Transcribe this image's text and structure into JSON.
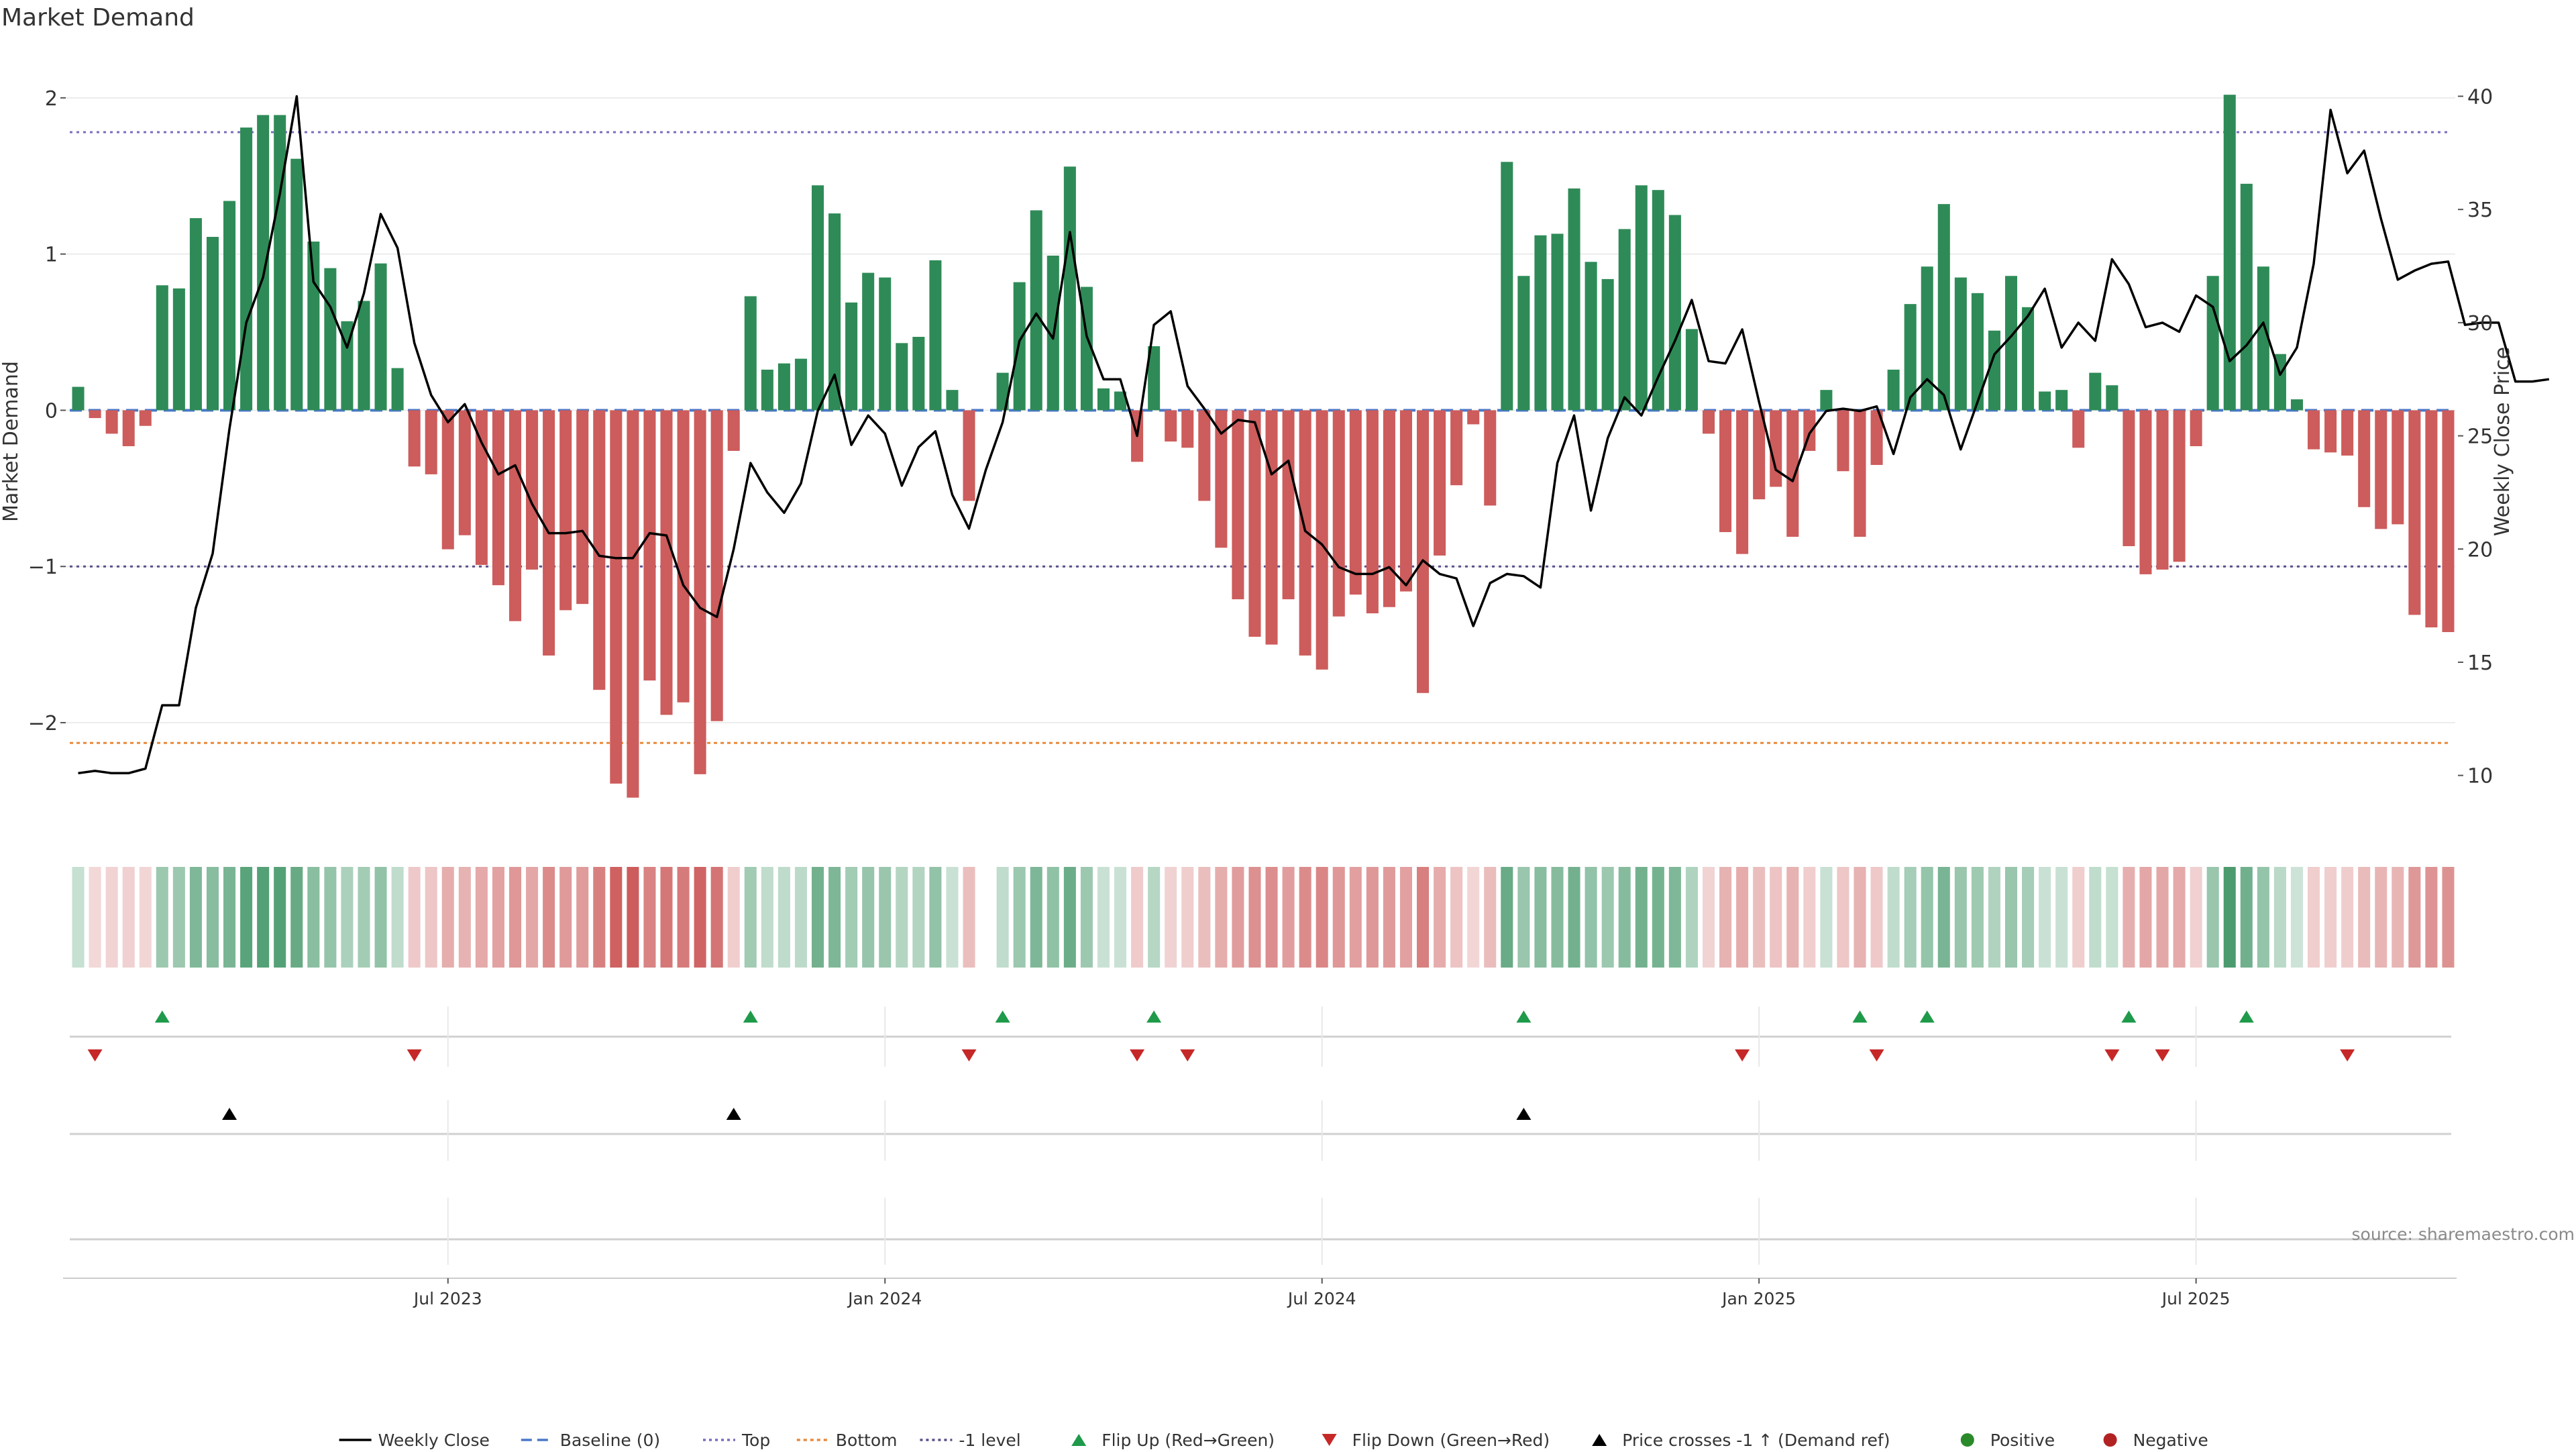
{
  "chart_data": {
    "type": "bar",
    "title": "Market Demand",
    "ylabel_left": "Market Demand",
    "ylabel_right": "Weekly Close Price",
    "source": "source: sharemaestro.com",
    "y_left_range": [
      -2.7,
      2.3
    ],
    "y_left_ticks": [
      2,
      1,
      0,
      -1,
      -2
    ],
    "y_left_tick_labels": [
      "2",
      "1",
      "0",
      "−1",
      "−2"
    ],
    "y_right_range": [
      7.5,
      42
    ],
    "y_right_ticks": [
      40,
      35,
      30,
      25,
      20,
      15,
      10
    ],
    "x_tick_labels": [
      "Jul 2023",
      "Jan 2024",
      "Jul 2024",
      "Jan 2025",
      "Jul 2025"
    ],
    "x_tick_weeks": [
      22,
      48,
      74,
      100,
      126
    ],
    "reference_lines": {
      "top": 1.78,
      "bottom": -2.13,
      "minus_one": -1,
      "baseline": 0
    },
    "demand": [
      0.15,
      -0.05,
      -0.15,
      -0.23,
      -0.1,
      0.8,
      0.78,
      1.23,
      1.11,
      1.34,
      1.81,
      1.89,
      1.89,
      1.61,
      1.08,
      0.91,
      0.57,
      0.7,
      0.94,
      0.27,
      -0.36,
      -0.41,
      -0.89,
      -0.8,
      -0.99,
      -1.12,
      -1.35,
      -1.02,
      -1.57,
      -1.28,
      -1.24,
      -1.79,
      -2.39,
      -2.48,
      -1.73,
      -1.95,
      -1.87,
      -2.33,
      -1.99,
      -0.26,
      0.73,
      0.26,
      0.3,
      0.33,
      1.44,
      1.26,
      0.69,
      0.88,
      0.85,
      0.43,
      0.47,
      0.96,
      0.13,
      -0.58,
      0,
      0.24,
      0.82,
      1.28,
      0.99,
      1.56,
      0.79,
      0.14,
      0.12,
      -0.33,
      0.41,
      -0.2,
      -0.24,
      -0.58,
      -0.88,
      -1.21,
      -1.45,
      -1.5,
      -1.21,
      -1.57,
      -1.66,
      -1.32,
      -1.18,
      -1.3,
      -1.26,
      -1.16,
      -1.81,
      -0.93,
      -0.48,
      -0.09,
      -0.61,
      1.59,
      0.86,
      1.12,
      1.13,
      1.42,
      0.95,
      0.84,
      1.16,
      1.44,
      1.41,
      1.25,
      0.52,
      -0.15,
      -0.78,
      -0.92,
      -0.57,
      -0.49,
      -0.81,
      -0.26,
      0.13,
      -0.39,
      -0.81,
      -0.35,
      0.26,
      0.68,
      0.92,
      1.32,
      0.85,
      0.75,
      0.51,
      0.86,
      0.66,
      0.12,
      0.13,
      -0.24,
      0.24,
      0.16,
      -0.87,
      -1.05,
      -1.02,
      -0.97,
      -0.23,
      0.86,
      2.02,
      1.45,
      0.92,
      0.36,
      0.07,
      -0.25,
      -0.27,
      -0.29,
      -0.62,
      -0.76,
      -0.73,
      -1.31,
      -1.39,
      -1.42
    ],
    "weekly_close": [
      10.1,
      10.2,
      10.1,
      10.1,
      10.3,
      13.1,
      13.1,
      17.4,
      19.8,
      25.3,
      30,
      32,
      35.7,
      40,
      31.8,
      30.7,
      28.9,
      31.3,
      34.8,
      33.3,
      29.1,
      26.8,
      25.6,
      26.4,
      24.7,
      23.3,
      23.7,
      22,
      20.7,
      20.7,
      20.8,
      19.7,
      19.6,
      19.6,
      20.7,
      20.6,
      18.4,
      17.4,
      17,
      20,
      23.8,
      22.5,
      21.6,
      22.9,
      26.1,
      27.7,
      24.6,
      25.9,
      25.1,
      22.8,
      24.5,
      25.2,
      22.4,
      20.9,
      23.5,
      25.6,
      29.2,
      30.4,
      29.3,
      34,
      29.4,
      27.5,
      27.5,
      25,
      29.9,
      30.5,
      27.2,
      26.2,
      25.1,
      25.7,
      25.6,
      23.3,
      23.9,
      20.8,
      20.2,
      19.2,
      18.9,
      18.9,
      19.2,
      18.4,
      19.5,
      18.9,
      18.7,
      16.6,
      18.5,
      18.9,
      18.8,
      18.3,
      23.8,
      25.9,
      21.7,
      24.9,
      26.7,
      25.9,
      27.6,
      29.2,
      31,
      28.3,
      28.2,
      29.7,
      26.5,
      23.5,
      23,
      25.1,
      26.1,
      26.2,
      26.1,
      26.3,
      24.2,
      26.7,
      27.5,
      26.8,
      24.4,
      26.5,
      28.6,
      29.4,
      30.3,
      31.5,
      28.9,
      30,
      29.2,
      32.8,
      31.7,
      29.8,
      30,
      29.6,
      31.2,
      30.7,
      28.3,
      29,
      30,
      27.7,
      28.9,
      32.6,
      39.4,
      36.6,
      37.6,
      34.6,
      31.9,
      32.3,
      32.6,
      32.7,
      29.9,
      30,
      30,
      27.4,
      27.4,
      27.5
    ],
    "flip_up_weeks": [
      5,
      40,
      55,
      64,
      86,
      106,
      110,
      122,
      129
    ],
    "flip_down_weeks": [
      1,
      20,
      53,
      63,
      66,
      99,
      107,
      121,
      124,
      135
    ],
    "price_cross_weeks": [
      9,
      39,
      86
    ],
    "legend": [
      "Weekly Close",
      "Baseline (0)",
      "Top",
      "Bottom",
      "-1 level",
      "Flip Up (Red→Green)",
      "Flip Down (Green→Red)",
      "Price crosses -1 ↑ (Demand ref)",
      "Positive",
      "Negative"
    ]
  },
  "colors": {
    "positive": "#2e8b57",
    "negative": "#cd5c5c",
    "top_line": "#7b6bbf",
    "bottom_line": "#e8893c",
    "minus_one_line": "#5a4f8c",
    "baseline": "#4a78c8",
    "flip_up": "#1f9a4a",
    "flip_down": "#c62828",
    "cross": "#000000",
    "legend_positive": "#2a8a2a",
    "legend_negative": "#b22222"
  }
}
